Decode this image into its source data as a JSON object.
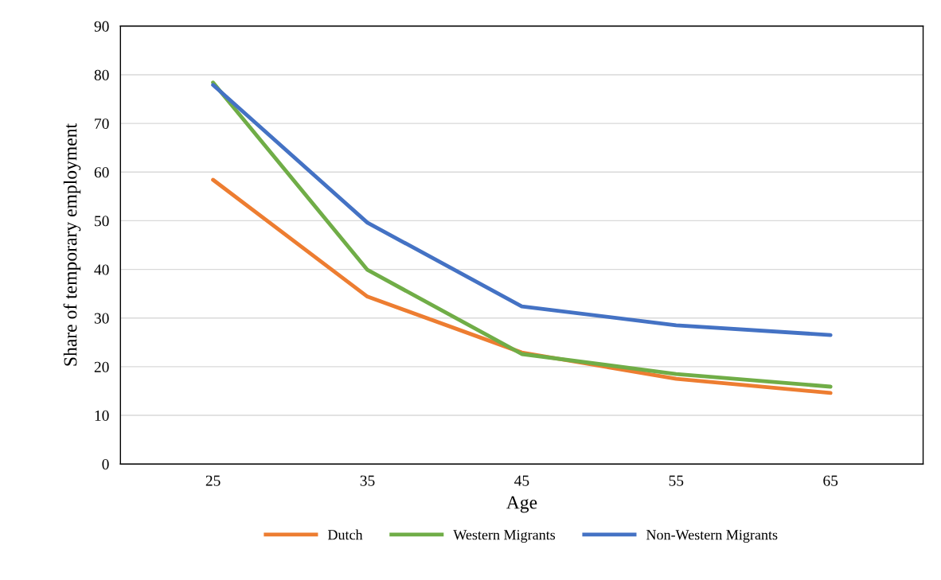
{
  "chart_data": {
    "type": "line",
    "xlabel": "Age",
    "ylabel": "Share of temporary employment",
    "categories": [
      "25",
      "35",
      "45",
      "55",
      "65"
    ],
    "series": [
      {
        "name": "Dutch",
        "color": "#ed7d31",
        "values": [
          58.4,
          34.4,
          22.9,
          17.5,
          14.6
        ]
      },
      {
        "name": "Western Migrants",
        "color": "#70ad47",
        "values": [
          78.4,
          39.9,
          22.6,
          18.5,
          15.9
        ]
      },
      {
        "name": "Non-Western Migrants",
        "color": "#4472c4",
        "values": [
          77.9,
          49.6,
          32.4,
          28.5,
          26.5
        ]
      }
    ],
    "ylim": [
      0,
      90
    ],
    "yticks": [
      0,
      10,
      20,
      30,
      40,
      50,
      60,
      70,
      80,
      90
    ],
    "grid": "y",
    "legend": "bottom",
    "line_style": "solid",
    "marker": "none"
  }
}
